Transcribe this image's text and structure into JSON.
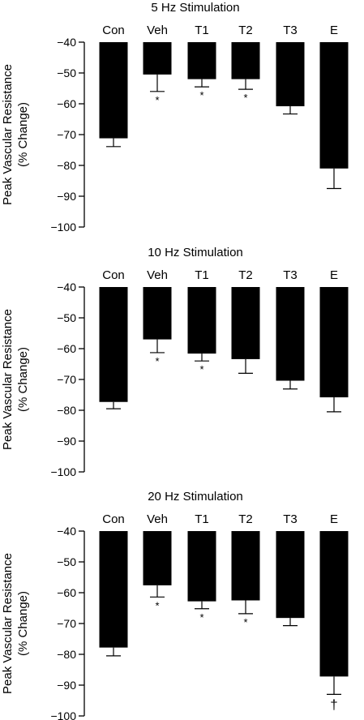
{
  "chart_data": [
    {
      "type": "bar",
      "title": "5 Hz Stimulation",
      "ylabel": [
        "Peak Vascular Resistance",
        "(% Change)"
      ],
      "categories": [
        "Con",
        "Veh",
        "T1",
        "T2",
        "T3",
        "E"
      ],
      "values": [
        -71.2,
        -50.5,
        -52.0,
        -52.0,
        -60.8,
        -81.0
      ],
      "errors": [
        2.7,
        5.5,
        2.5,
        3.3,
        2.5,
        6.5
      ],
      "annotations": [
        "",
        "*",
        "*",
        "*",
        "",
        ""
      ],
      "yticks": [
        "−40",
        "−50",
        "−60",
        "−70",
        "−80",
        "−90",
        "−100"
      ],
      "ylim": [
        -100,
        -40
      ]
    },
    {
      "type": "bar",
      "title": "10 Hz Stimulation",
      "ylabel": [
        "Peak Vascular Resistance",
        "(% Change)"
      ],
      "categories": [
        "Con",
        "Veh",
        "T1",
        "T2",
        "T3",
        "E"
      ],
      "values": [
        -77.3,
        -57.0,
        -61.6,
        -63.4,
        -70.4,
        -75.8
      ],
      "errors": [
        2.2,
        4.3,
        2.4,
        4.6,
        2.7,
        4.7
      ],
      "annotations": [
        "",
        "*",
        "*",
        "",
        "",
        ""
      ],
      "yticks": [
        "−40",
        "−50",
        "−60",
        "−70",
        "−80",
        "−90",
        "−100"
      ],
      "ylim": [
        -100,
        -40
      ]
    },
    {
      "type": "bar",
      "title": "20 Hz Stimulation",
      "ylabel": [
        "Peak Vascular Resistance",
        "(% Change)"
      ],
      "categories": [
        "Con",
        "Veh",
        "T1",
        "T2",
        "T3",
        "E"
      ],
      "values": [
        -77.8,
        -57.6,
        -62.8,
        -62.5,
        -68.2,
        -87.2
      ],
      "errors": [
        2.7,
        3.8,
        2.4,
        4.3,
        2.5,
        5.8
      ],
      "annotations": [
        "",
        "*",
        "*",
        "*",
        "",
        "†"
      ],
      "yticks": [
        "−40",
        "−50",
        "−60",
        "−70",
        "−80",
        "−90",
        "−100"
      ],
      "ylim": [
        -100,
        -40
      ]
    }
  ]
}
